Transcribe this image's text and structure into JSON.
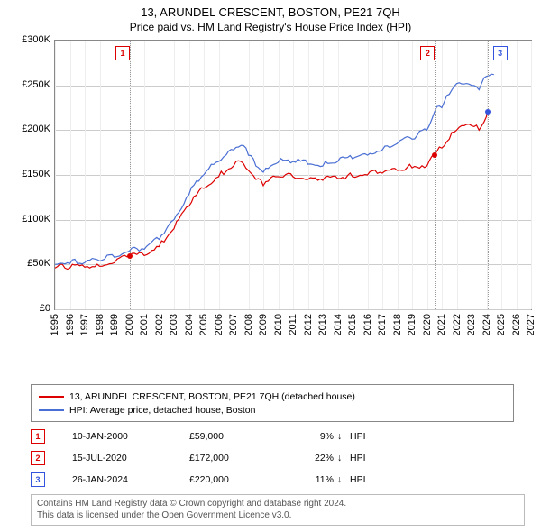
{
  "title": "13, ARUNDEL CRESCENT, BOSTON, PE21 7QH",
  "subtitle": "Price paid vs. HM Land Registry's House Price Index (HPI)",
  "chart": {
    "type": "line",
    "background_color": "#ffffff",
    "grid_color": "#cccccc",
    "border_color": "#888888",
    "x_axis": {
      "min_year": 1995,
      "max_year": 2027,
      "ticks": [
        1995,
        1996,
        1997,
        1998,
        1999,
        2000,
        2001,
        2002,
        2003,
        2004,
        2005,
        2006,
        2007,
        2008,
        2009,
        2010,
        2011,
        2012,
        2013,
        2014,
        2015,
        2016,
        2017,
        2018,
        2019,
        2020,
        2021,
        2022,
        2023,
        2024,
        2025,
        2026,
        2027
      ],
      "label_fontsize": 11
    },
    "y_axis": {
      "min": 0,
      "max": 300000,
      "ticks": [
        0,
        50000,
        100000,
        150000,
        200000,
        250000,
        300000
      ],
      "tick_labels": [
        "£0",
        "£50K",
        "£100K",
        "£150K",
        "£200K",
        "£250K",
        "£300K"
      ],
      "label_fontsize": 11
    },
    "series": [
      {
        "id": "property",
        "label": "13, ARUNDEL CRESCENT, BOSTON, PE21 7QH (detached house)",
        "color": "#dd0000",
        "line_width": 1.2,
        "data_years": [
          1995,
          1996,
          1997,
          1998,
          1999,
          2000,
          2001,
          2002,
          2003,
          2004,
          2005,
          2006,
          2007,
          2007.5,
          2008,
          2008.5,
          2009,
          2010,
          2011,
          2012,
          2013,
          2014,
          2015,
          2016,
          2017,
          2018,
          2019,
          2020,
          2020.5,
          2021,
          2021.5,
          2022,
          2023,
          2023.5,
          2024,
          2024.08
        ],
        "data_values": [
          46000,
          46000,
          47000,
          48000,
          52000,
          59000,
          60000,
          70000,
          90000,
          115000,
          135000,
          148000,
          160000,
          165000,
          155000,
          145000,
          138000,
          148000,
          148000,
          145000,
          144000,
          146000,
          148000,
          150000,
          152000,
          155000,
          158000,
          160000,
          172000,
          180000,
          190000,
          200000,
          205000,
          200000,
          215000,
          220000
        ]
      },
      {
        "id": "hpi",
        "label": "HPI: Average price, detached house, Boston",
        "color": "#4a6fd4",
        "line_width": 1.2,
        "data_years": [
          1995,
          1996,
          1997,
          1998,
          1999,
          2000,
          2001,
          2002,
          2003,
          2004,
          2005,
          2006,
          2007,
          2007.5,
          2008,
          2008.5,
          2009,
          2010,
          2011,
          2012,
          2013,
          2014,
          2015,
          2016,
          2017,
          2018,
          2019,
          2020,
          2020.5,
          2021,
          2021.5,
          2022,
          2023,
          2023.5,
          2024,
          2024.5
        ],
        "data_values": [
          50000,
          51000,
          52000,
          54000,
          58000,
          65000,
          67000,
          78000,
          100000,
          128000,
          150000,
          165000,
          178000,
          183000,
          172000,
          160000,
          153000,
          164000,
          165000,
          162000,
          160000,
          165000,
          168000,
          172000,
          178000,
          185000,
          190000,
          200000,
          220000,
          225000,
          240000,
          252000,
          250000,
          245000,
          260000,
          262000
        ]
      }
    ],
    "transaction_markers": [
      {
        "n": "1",
        "year": 2000.03,
        "value": 59000,
        "color": "red"
      },
      {
        "n": "2",
        "year": 2020.54,
        "value": 172000,
        "color": "red"
      },
      {
        "n": "3",
        "year": 2024.07,
        "value": 220000,
        "color": "blue"
      }
    ]
  },
  "legend": {
    "items": [
      {
        "color": "#dd0000",
        "text": "13, ARUNDEL CRESCENT, BOSTON, PE21 7QH (detached house)"
      },
      {
        "color": "#4a6fd4",
        "text": "HPI: Average price, detached house, Boston"
      }
    ]
  },
  "transactions": [
    {
      "n": "1",
      "date": "10-JAN-2000",
      "price": "£59,000",
      "pct": "9%",
      "arrow": "↓",
      "rel": "HPI",
      "color": "red"
    },
    {
      "n": "2",
      "date": "15-JUL-2020",
      "price": "£172,000",
      "pct": "22%",
      "arrow": "↓",
      "rel": "HPI",
      "color": "red"
    },
    {
      "n": "3",
      "date": "26-JAN-2024",
      "price": "£220,000",
      "pct": "11%",
      "arrow": "↓",
      "rel": "HPI",
      "color": "blue"
    }
  ],
  "attribution": {
    "line1": "Contains HM Land Registry data © Crown copyright and database right 2024.",
    "line2": "This data is licensed under the Open Government Licence v3.0."
  }
}
